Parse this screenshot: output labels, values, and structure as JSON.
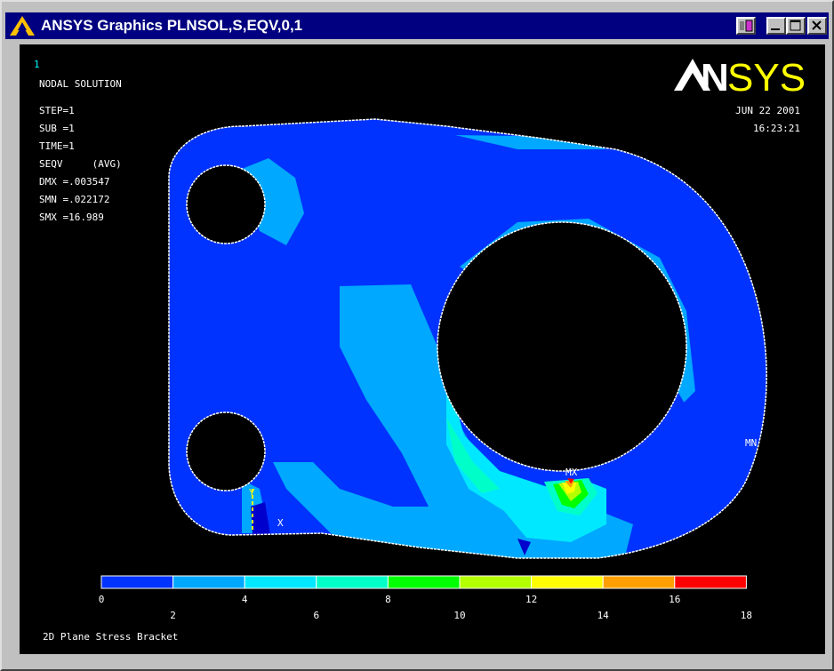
{
  "window": {
    "title": "ANSYS Graphics   PLNSOL,S,EQV,0,1"
  },
  "viewport": {
    "window_number": "1",
    "logo_text": "ANSYS",
    "logo_colors": {
      "an": "#ffffff",
      "sys": "#ffff00"
    },
    "info": {
      "heading": "NODAL SOLUTION",
      "step": "STEP=1",
      "sub": "SUB =1",
      "time": "TIME=1",
      "seqv": "SEQV     (AVG)",
      "dmx": "DMX =.003547",
      "smn": "SMN =.022172",
      "smx": "SMX =16.989"
    },
    "date": "JUN 22 2001",
    "time": "16:23:21",
    "markers": {
      "mx": "MX",
      "mn": "MN",
      "y_axis": "Y",
      "x_axis": "X"
    },
    "subtitle": "2D Plane Stress Bracket"
  },
  "legend": {
    "colors": [
      "#0033ff",
      "#00a8ff",
      "#00e8ff",
      "#00ffc8",
      "#00ff00",
      "#b4ff00",
      "#ffff00",
      "#ffa000",
      "#ff0000"
    ],
    "labels": [
      "0",
      "2",
      "4",
      "6",
      "8",
      "10",
      "12",
      "14",
      "16",
      "18"
    ]
  }
}
